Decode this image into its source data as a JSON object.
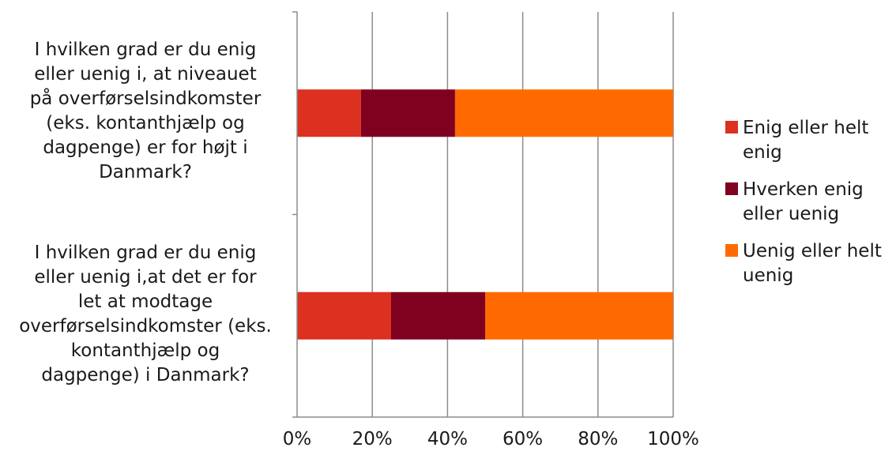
{
  "chart_data": {
    "type": "bar",
    "orientation": "horizontal",
    "stacked": "percent",
    "categories": [
      "I hvilken grad er du enig eller uenig i, at niveauet på overførselsindkomster (eks. kontanthjælp og dagpenge) er for højt i Danmark?",
      "I hvilken grad er du enig eller uenig i,at det er for let at modtage overførselsindkomster (eks. kontanthjælp og dagpenge) i Danmark?"
    ],
    "category_lines": [
      [
        "I hvilken grad er du enig",
        "eller uenig i, at niveauet",
        "på overførselsindkomster",
        "(eks. kontanthjælp og",
        "dagpenge) er for højt i",
        "Danmark?"
      ],
      [
        "I hvilken grad er du enig",
        "eller uenig i,at det er for",
        "let at modtage",
        "overførselsindkomster (eks.",
        "kontanthjælp og",
        "dagpenge) i Danmark?"
      ]
    ],
    "series": [
      {
        "name": "Enig eller helt enig",
        "legend_lines": [
          "Enig eller helt",
          "enig"
        ],
        "color": "#dc3020",
        "values": [
          17,
          25
        ]
      },
      {
        "name": "Hverken enig eller uenig",
        "legend_lines": [
          "Hverken enig",
          "eller uenig"
        ],
        "color": "#800020",
        "values": [
          25,
          25
        ]
      },
      {
        "name": "Uenig eller helt uenig",
        "legend_lines": [
          "Uenig eller helt",
          "uenig"
        ],
        "color": "#ff6a00",
        "values": [
          58,
          50
        ]
      }
    ],
    "xlim": [
      0,
      100
    ],
    "xticks": [
      "0%",
      "20%",
      "40%",
      "60%",
      "80%",
      "100%"
    ],
    "grid": true,
    "legend_position": "right",
    "title": "",
    "xlabel": "",
    "ylabel": ""
  }
}
